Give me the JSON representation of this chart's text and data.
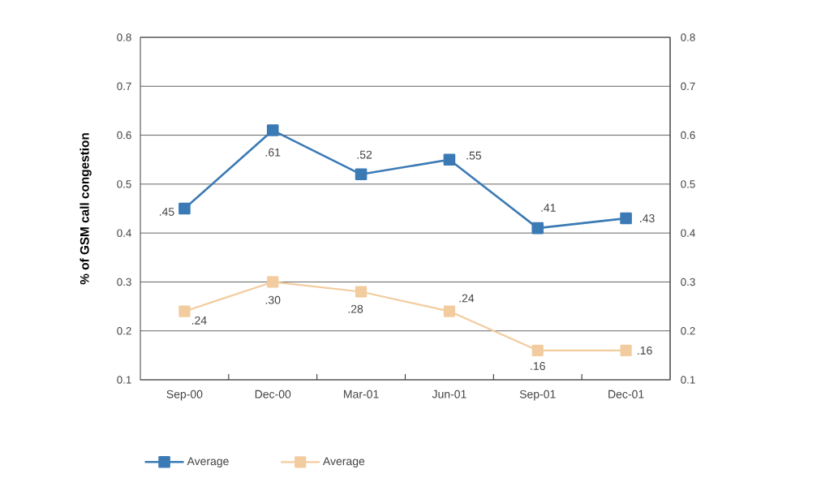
{
  "chart_data": {
    "type": "line",
    "ylabel": "% of GSM call congestion",
    "categories": [
      "Sep-00",
      "Dec-00",
      "Mar-01",
      "Jun-01",
      "Sep-01",
      "Dec-01"
    ],
    "series": [
      {
        "name": "Average",
        "color": "#3b7ab5",
        "values": [
          0.45,
          0.61,
          0.52,
          0.55,
          0.41,
          0.43
        ],
        "value_labels": [
          ".45",
          ".61",
          ".52",
          ".55",
          ".41",
          ".43"
        ]
      },
      {
        "name": "Average",
        "color": "#f2cc9e",
        "values": [
          0.24,
          0.3,
          0.28,
          0.24,
          0.16,
          0.16
        ],
        "value_labels": [
          ".24",
          ".30",
          ".28",
          ".24",
          ".16",
          ".16"
        ]
      }
    ],
    "ylim": [
      0.1,
      0.8
    ],
    "yticks": [
      0.1,
      0.2,
      0.3,
      0.4,
      0.5,
      0.6,
      0.7,
      0.8
    ],
    "y2lim": [
      0.1,
      0.8
    ],
    "y2ticks": [
      0.1,
      0.2,
      0.3,
      0.4,
      0.5,
      0.6,
      0.7,
      0.8
    ],
    "grid": "y",
    "legend": "bottom",
    "marker": "square"
  }
}
